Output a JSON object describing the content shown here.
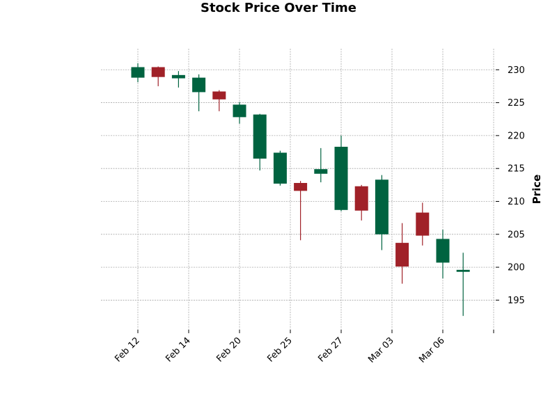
{
  "chart_data": {
    "type": "candlestick",
    "title": "Stock Price Over Time",
    "xlabel": "",
    "ylabel": "Price",
    "ylim": [
      190.5,
      233.2
    ],
    "yticks": [
      195,
      200,
      205,
      210,
      215,
      220,
      225,
      230
    ],
    "grid": true,
    "colors": {
      "up": "#006340",
      "down": "#a02128"
    },
    "xticks": [
      {
        "index": 0,
        "label": "Feb 12"
      },
      {
        "index": 2.5,
        "label": "Feb 14"
      },
      {
        "index": 5,
        "label": "Feb 20"
      },
      {
        "index": 7.5,
        "label": "Feb 25"
      },
      {
        "index": 10,
        "label": "Feb 27"
      },
      {
        "index": 12.5,
        "label": "Mar 03"
      },
      {
        "index": 15,
        "label": "Mar 06"
      },
      {
        "index": 17.5,
        "label": ""
      }
    ],
    "candles": [
      {
        "open": 228.8,
        "high": 231.0,
        "low": 228.1,
        "close": 230.4,
        "direction": "up"
      },
      {
        "open": 230.4,
        "high": 230.5,
        "low": 227.5,
        "close": 228.9,
        "direction": "down"
      },
      {
        "open": 228.7,
        "high": 229.8,
        "low": 227.3,
        "close": 229.2,
        "direction": "up"
      },
      {
        "open": 226.6,
        "high": 229.3,
        "low": 223.7,
        "close": 228.8,
        "direction": "up"
      },
      {
        "open": 226.7,
        "high": 226.9,
        "low": 223.7,
        "close": 225.5,
        "direction": "down"
      },
      {
        "open": 222.8,
        "high": 225.1,
        "low": 221.8,
        "close": 224.7,
        "direction": "up"
      },
      {
        "open": 216.5,
        "high": 223.3,
        "low": 214.7,
        "close": 223.2,
        "direction": "up"
      },
      {
        "open": 212.7,
        "high": 217.7,
        "low": 212.4,
        "close": 217.4,
        "direction": "up"
      },
      {
        "open": 212.8,
        "high": 213.1,
        "low": 204.1,
        "close": 211.6,
        "direction": "down"
      },
      {
        "open": 214.2,
        "high": 218.1,
        "low": 212.9,
        "close": 214.9,
        "direction": "up"
      },
      {
        "open": 208.7,
        "high": 220.0,
        "low": 208.5,
        "close": 218.3,
        "direction": "up"
      },
      {
        "open": 212.3,
        "high": 212.5,
        "low": 207.1,
        "close": 208.6,
        "direction": "down"
      },
      {
        "open": 205.0,
        "high": 214.0,
        "low": 202.6,
        "close": 213.3,
        "direction": "up"
      },
      {
        "open": 203.7,
        "high": 206.7,
        "low": 197.5,
        "close": 200.1,
        "direction": "down"
      },
      {
        "open": 208.3,
        "high": 209.8,
        "low": 203.3,
        "close": 204.8,
        "direction": "down"
      },
      {
        "open": 200.7,
        "high": 205.7,
        "low": 198.3,
        "close": 204.3,
        "direction": "up"
      },
      {
        "open": 199.3,
        "high": 202.2,
        "low": 192.6,
        "close": 199.6,
        "direction": "up"
      }
    ]
  }
}
